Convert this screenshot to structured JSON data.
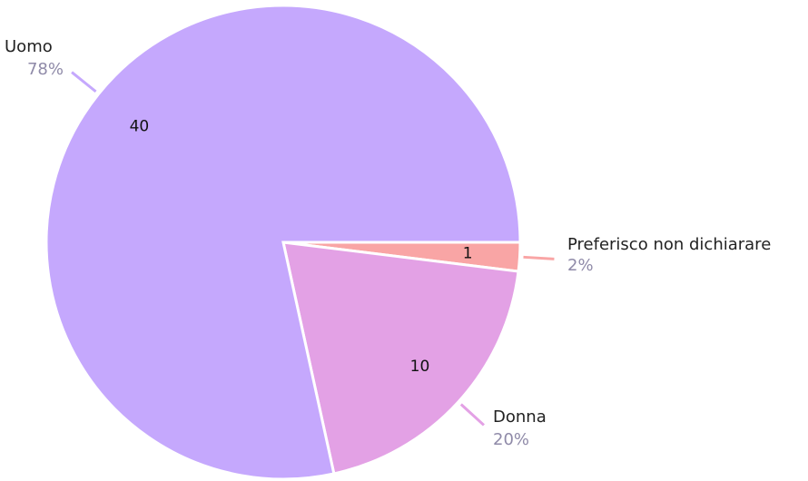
{
  "chart_data": {
    "type": "pie",
    "categories": [
      "Preferisco non dichiarare",
      "Donna",
      "Uomo"
    ],
    "values": [
      1,
      10,
      40
    ],
    "percent_labels": [
      "2%",
      "20%",
      "78%"
    ],
    "colors": [
      "#f9a5a5",
      "#e3a1e5",
      "#c5a8fd"
    ],
    "start_angle": 0,
    "direction": "clockwise"
  }
}
